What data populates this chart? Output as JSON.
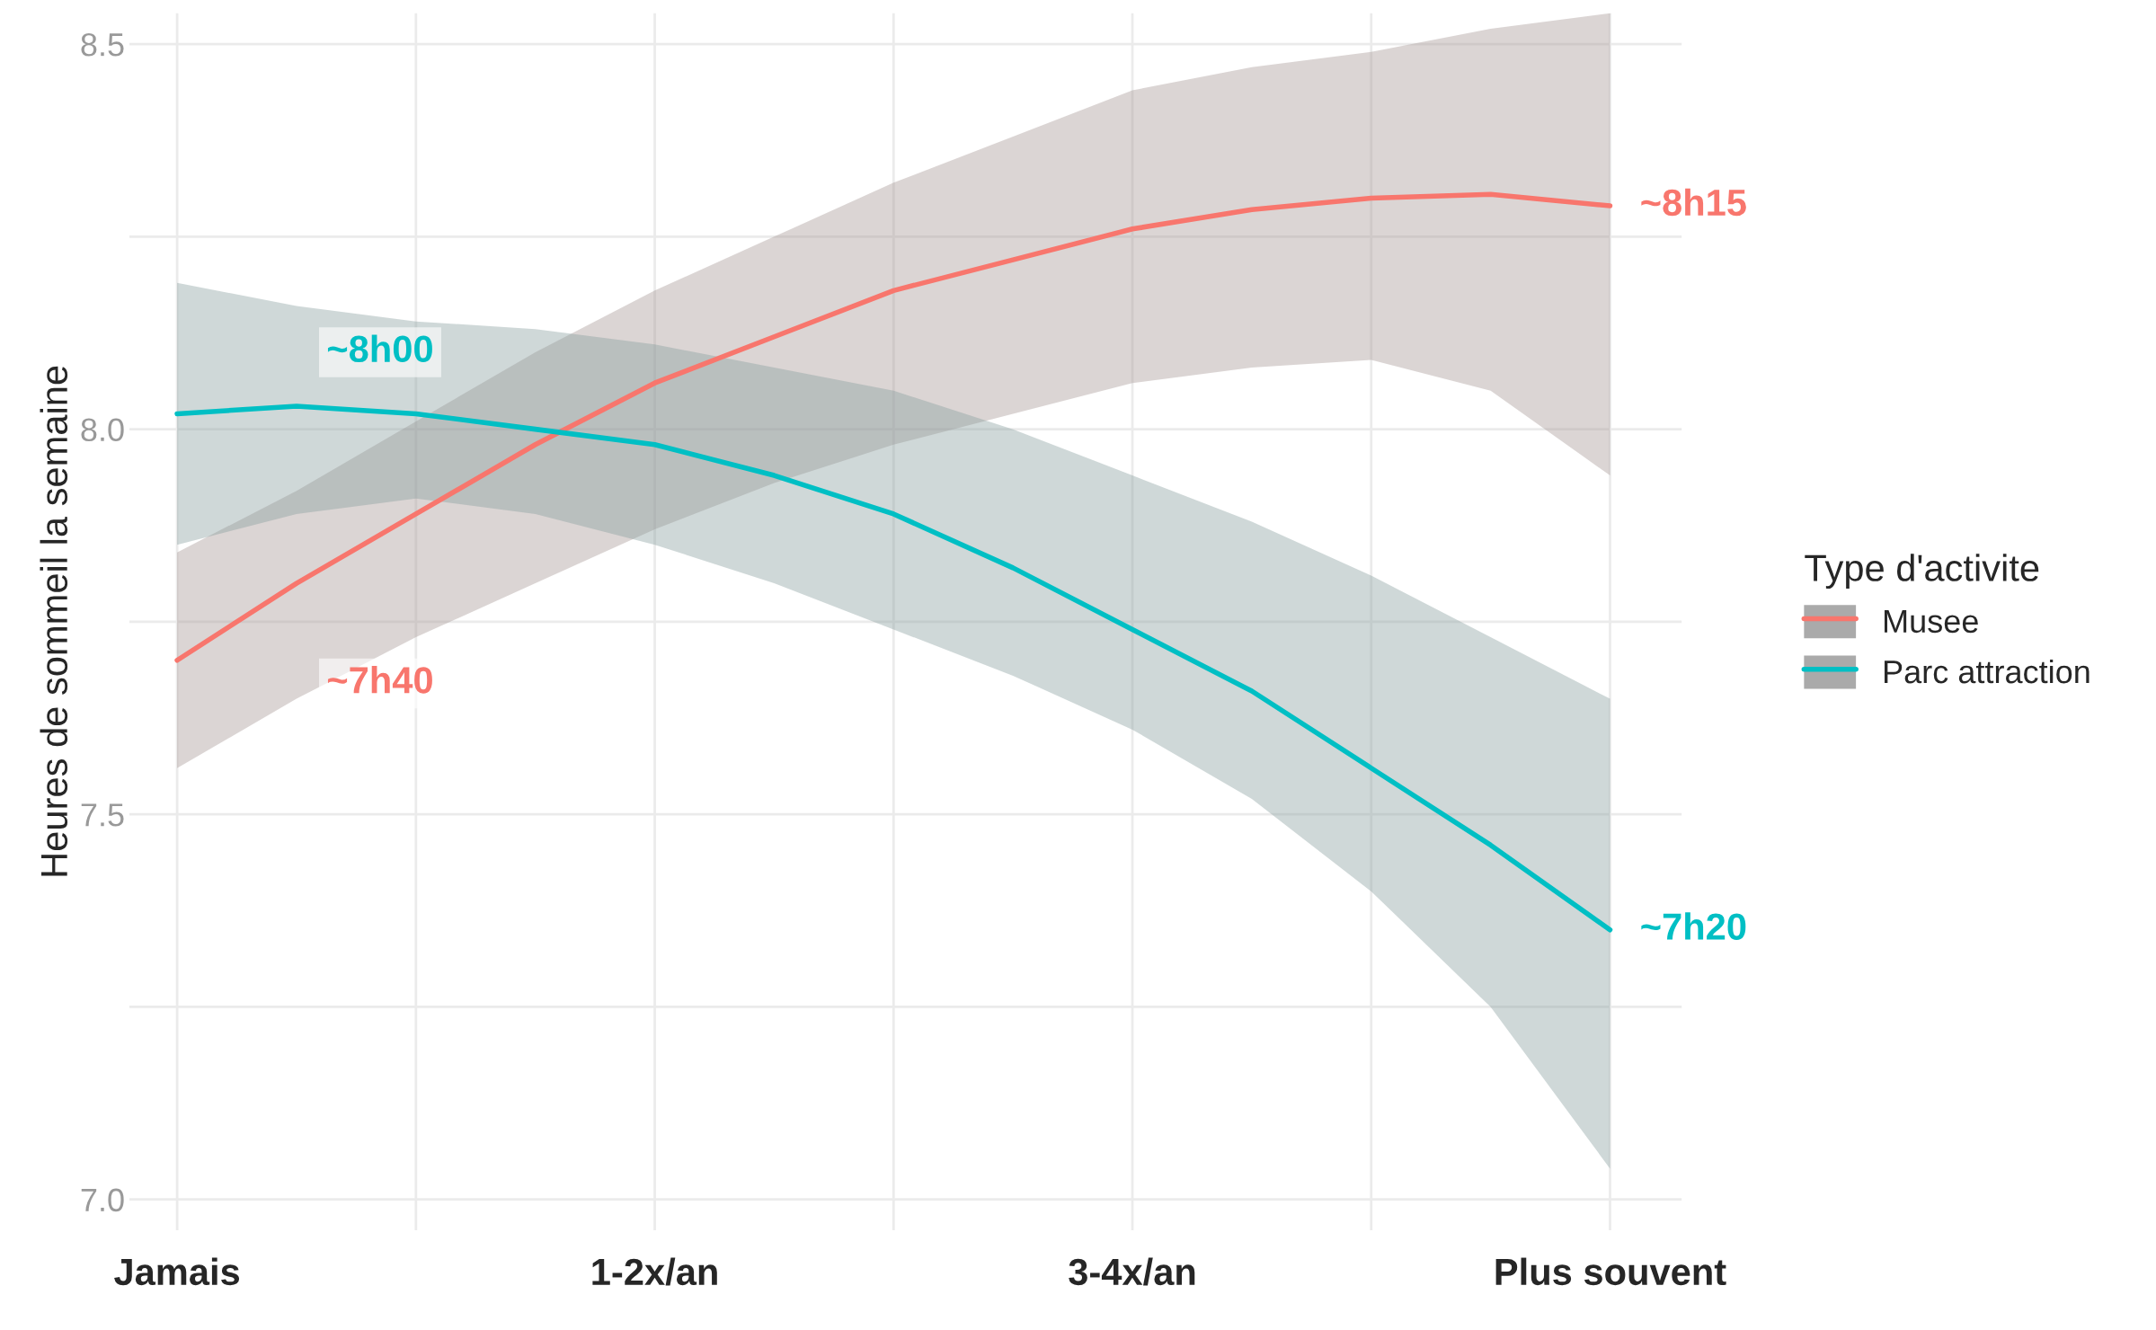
{
  "chart_data": {
    "type": "line",
    "ylabel": "Heures de sommeil la semaine",
    "legend_title": "Type d'activite",
    "categories": [
      "Jamais",
      null,
      null,
      null,
      "1-2x/an",
      null,
      null,
      null,
      "3-4x/an",
      null,
      null,
      null,
      "Plus souvent"
    ],
    "ylim": [
      6.96,
      8.54
    ],
    "yticks": [
      {
        "value": 7,
        "label": "7.0"
      },
      {
        "value": 7.25,
        "label": null
      },
      {
        "value": 7.5,
        "label": "7.5"
      },
      {
        "value": 7.75,
        "label": null
      },
      {
        "value": 8,
        "label": "8.0"
      },
      {
        "value": 8.25,
        "label": null
      },
      {
        "value": 8.5,
        "label": "8.5"
      }
    ],
    "grid": true,
    "legend": "right",
    "series": [
      {
        "name": "Musee",
        "color": "#f8766d",
        "values": [
          7.7,
          7.8,
          7.89,
          7.98,
          8.06,
          8.12,
          8.18,
          8.22,
          8.26,
          8.285,
          8.3,
          8.305,
          8.29
        ],
        "lower": [
          7.56,
          7.65,
          7.73,
          7.8,
          7.87,
          7.93,
          7.98,
          8.02,
          8.06,
          8.08,
          8.09,
          8.05,
          7.94
        ],
        "upper": [
          7.84,
          7.92,
          8.01,
          8.1,
          8.18,
          8.25,
          8.32,
          8.38,
          8.44,
          8.47,
          8.49,
          8.52,
          8.54
        ]
      },
      {
        "name": "Parc attraction",
        "color": "#00bfc4",
        "values": [
          8.02,
          8.03,
          8.02,
          8.0,
          7.98,
          7.94,
          7.89,
          7.82,
          7.74,
          7.66,
          7.56,
          7.46,
          7.35
        ],
        "lower": [
          7.85,
          7.89,
          7.91,
          7.89,
          7.85,
          7.8,
          7.74,
          7.68,
          7.61,
          7.52,
          7.4,
          7.25,
          7.04
        ],
        "upper": [
          8.19,
          8.16,
          8.14,
          8.13,
          8.11,
          8.08,
          8.05,
          8.0,
          7.94,
          7.88,
          7.81,
          7.73,
          7.65
        ]
      }
    ],
    "annotations": [
      "~8h00",
      "~7h40",
      "~8h15",
      "~7h20"
    ]
  }
}
